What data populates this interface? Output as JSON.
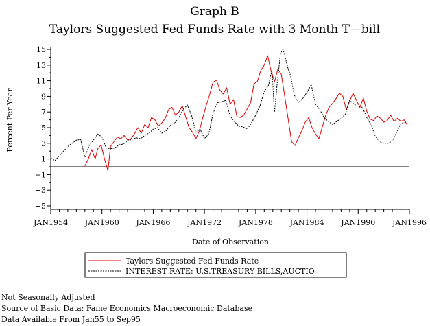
{
  "chart_data": {
    "type": "line",
    "title": "Graph B",
    "subtitle": "Taylors Suggested Fed Funds Rate with 3 Month T—bill",
    "xlabel": "Date of Observation",
    "ylabel": "Percent Per Year",
    "xlim": [
      1954.0,
      1996.0
    ],
    "ylim": [
      -5,
      15
    ],
    "x_ticks": [
      1954,
      1960,
      1966,
      1972,
      1978,
      1984,
      1990,
      1996
    ],
    "x_tick_labels": [
      "JAN1954",
      "JAN1960",
      "JAN1966",
      "JAN1972",
      "JAN1978",
      "JAN1984",
      "JAN1990",
      "JAN1996"
    ],
    "y_ticks": [
      15,
      13,
      11,
      9,
      7,
      5,
      3,
      1,
      -1,
      -3,
      -5
    ],
    "y_tick_labels": [
      "15",
      "13",
      "11",
      "9",
      "7",
      "5",
      "3",
      "1",
      "−1",
      "−3",
      "−5"
    ],
    "reference_line_y": 0,
    "legend_position": "bottom-center",
    "series": [
      {
        "name": "Taylors Suggested Fed Funds Rate",
        "color": "#e00000",
        "style": "solid",
        "x": [
          1958.0,
          1958.4,
          1958.8,
          1959.2,
          1959.5,
          1959.9,
          1960.3,
          1960.7,
          1961.0,
          1961.4,
          1961.8,
          1962.2,
          1962.6,
          1963.0,
          1963.4,
          1963.8,
          1964.2,
          1964.6,
          1965.0,
          1965.4,
          1965.8,
          1966.2,
          1966.6,
          1967.0,
          1967.4,
          1967.8,
          1968.2,
          1968.6,
          1969.0,
          1969.4,
          1969.8,
          1970.2,
          1970.6,
          1971.0,
          1971.4,
          1971.8,
          1972.2,
          1972.6,
          1973.0,
          1973.4,
          1973.8,
          1974.2,
          1974.6,
          1975.0,
          1975.4,
          1975.8,
          1976.2,
          1976.6,
          1977.0,
          1977.4,
          1977.8,
          1978.2,
          1978.6,
          1979.0,
          1979.4,
          1979.8,
          1980.2,
          1980.6,
          1981.0,
          1981.4,
          1981.8,
          1982.2,
          1982.6,
          1983.0,
          1983.4,
          1983.8,
          1984.2,
          1984.6,
          1985.0,
          1985.4,
          1985.8,
          1986.2,
          1986.6,
          1987.0,
          1987.4,
          1987.8,
          1988.2,
          1988.6,
          1989.0,
          1989.4,
          1989.8,
          1990.2,
          1990.6,
          1991.0,
          1991.4,
          1991.8,
          1992.2,
          1992.6,
          1993.0,
          1993.4,
          1993.8,
          1994.2,
          1994.6,
          1995.0,
          1995.4,
          1995.7
        ],
        "values": [
          0.1,
          1.0,
          2.2,
          1.0,
          2.3,
          2.8,
          1.0,
          -0.5,
          2.6,
          3.2,
          3.8,
          3.6,
          4.0,
          3.4,
          3.6,
          4.2,
          5.0,
          4.3,
          5.4,
          5.0,
          6.3,
          6.0,
          5.2,
          5.6,
          6.2,
          7.3,
          7.6,
          6.6,
          7.0,
          7.8,
          6.4,
          5.0,
          4.4,
          3.6,
          4.6,
          6.3,
          7.8,
          9.2,
          10.8,
          11.1,
          9.8,
          9.3,
          10.1,
          8.0,
          8.6,
          6.4,
          6.3,
          6.6,
          7.4,
          8.2,
          10.6,
          10.9,
          12.3,
          13.0,
          14.2,
          12.2,
          10.9,
          12.5,
          11.8,
          9.0,
          6.1,
          3.2,
          2.7,
          3.7,
          4.6,
          5.7,
          6.3,
          5.0,
          4.2,
          3.6,
          5.1,
          6.6,
          7.6,
          8.1,
          8.7,
          9.4,
          9.0,
          7.3,
          8.4,
          9.4,
          8.5,
          7.6,
          8.8,
          7.1,
          6.1,
          5.9,
          6.5,
          6.2,
          5.7,
          5.9,
          6.6,
          5.8,
          6.2,
          5.8,
          6.0,
          5.4
        ]
      },
      {
        "name": "INTEREST RATE: U.S.TREASURY BILLS,AUCTIO",
        "color": "#000000",
        "style": "dashed",
        "x": [
          1954.0,
          1954.5,
          1955.0,
          1955.5,
          1956.0,
          1956.5,
          1957.0,
          1957.5,
          1958.0,
          1958.5,
          1959.0,
          1959.5,
          1960.0,
          1960.5,
          1961.0,
          1961.5,
          1962.0,
          1962.5,
          1963.0,
          1963.5,
          1964.0,
          1964.5,
          1965.0,
          1965.5,
          1966.0,
          1966.5,
          1967.0,
          1967.5,
          1968.0,
          1968.5,
          1969.0,
          1969.5,
          1970.0,
          1970.5,
          1971.0,
          1971.5,
          1972.0,
          1972.5,
          1973.0,
          1973.5,
          1974.0,
          1974.5,
          1975.0,
          1975.5,
          1976.0,
          1976.5,
          1977.0,
          1977.5,
          1978.0,
          1978.5,
          1979.0,
          1979.5,
          1979.9,
          1980.2,
          1980.5,
          1980.9,
          1981.2,
          1981.5,
          1981.8,
          1982.1,
          1982.5,
          1983.0,
          1983.5,
          1984.0,
          1984.5,
          1985.0,
          1985.5,
          1986.0,
          1986.5,
          1987.0,
          1987.5,
          1988.0,
          1988.5,
          1989.0,
          1989.5,
          1990.0,
          1990.5,
          1991.0,
          1991.5,
          1992.0,
          1992.5,
          1993.0,
          1993.5,
          1994.0,
          1994.5,
          1995.0,
          1995.7
        ],
        "values": [
          1.1,
          0.8,
          1.4,
          2.0,
          2.6,
          3.0,
          3.4,
          3.5,
          1.2,
          2.7,
          3.4,
          4.2,
          3.8,
          2.4,
          2.3,
          2.4,
          2.8,
          2.9,
          3.3,
          3.5,
          3.7,
          3.6,
          4.0,
          4.3,
          4.8,
          5.0,
          4.3,
          4.6,
          5.3,
          5.6,
          6.3,
          7.3,
          7.9,
          6.5,
          4.4,
          4.8,
          3.6,
          4.2,
          6.8,
          8.2,
          8.3,
          8.5,
          6.5,
          5.8,
          5.2,
          5.1,
          4.8,
          5.6,
          6.6,
          7.8,
          9.6,
          10.4,
          12.3,
          7.0,
          10.5,
          14.5,
          15.0,
          13.8,
          12.5,
          11.6,
          9.2,
          8.2,
          8.7,
          9.5,
          10.5,
          8.0,
          7.3,
          6.3,
          5.8,
          5.4,
          5.8,
          6.2,
          6.7,
          8.5,
          8.0,
          7.7,
          7.6,
          6.3,
          5.4,
          3.9,
          3.2,
          3.0,
          3.0,
          3.3,
          4.4,
          5.5,
          5.8
        ]
      }
    ]
  },
  "footnotes": [
    "Not Seasonally Adjusted",
    "Source of Basic Data: Fame Economics Macroeconomic Database",
    "Data Available From Jan55 to Sep95"
  ]
}
